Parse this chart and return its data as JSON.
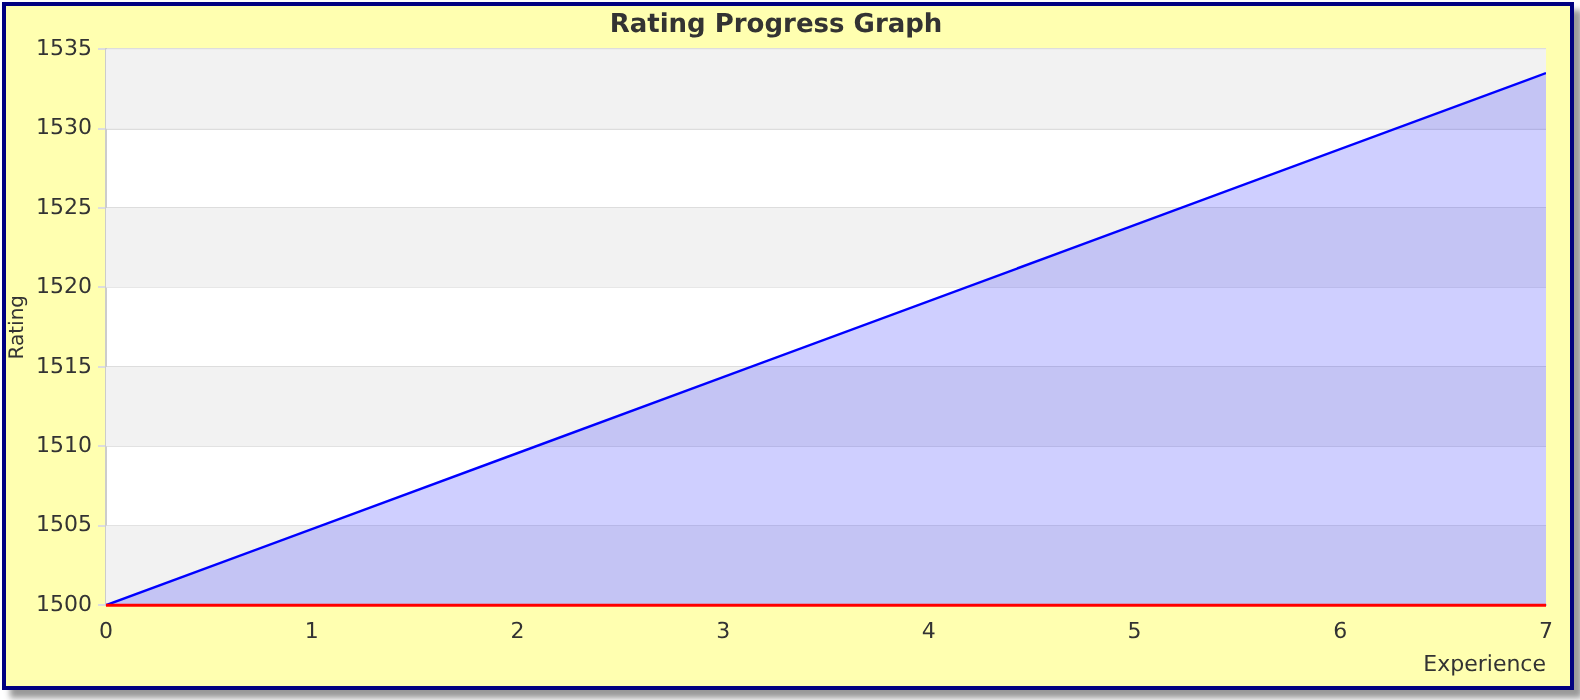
{
  "chart_data": {
    "type": "area",
    "title": "Rating Progress Graph",
    "xlabel": "Experience",
    "ylabel": "Rating",
    "x": [
      0,
      7
    ],
    "series": [
      {
        "color": "#0000ff",
        "values": [
          1500,
          1533.5
        ]
      }
    ],
    "xlim": [
      0,
      7
    ],
    "xticks": [
      0,
      1,
      2,
      3,
      4,
      5,
      6,
      7
    ],
    "ylim": [
      1500,
      1535
    ],
    "yticks": [
      1500,
      1505,
      1510,
      1515,
      1520,
      1525,
      1530,
      1535
    ],
    "ref_lines": [
      {
        "axis": "y",
        "value": 1500,
        "color": "#ff0000"
      }
    ],
    "grid": "y",
    "legend": false,
    "marker": "none"
  }
}
